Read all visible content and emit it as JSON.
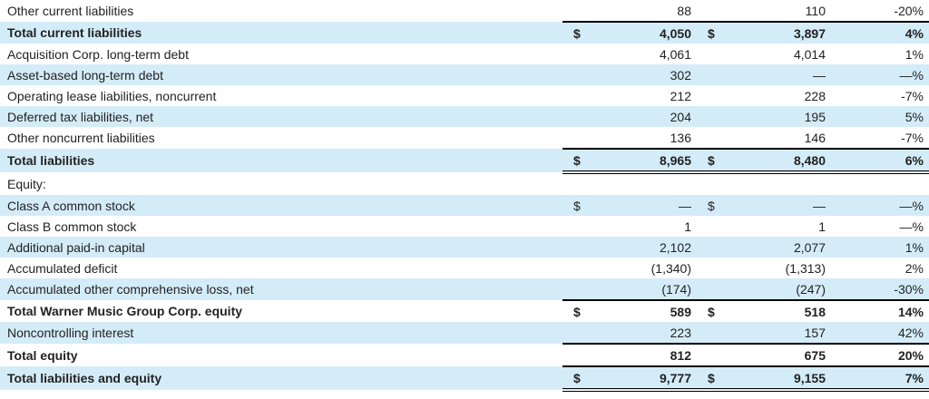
{
  "table": {
    "rows": [
      {
        "label": "Other current liabilities",
        "cells": [
          null,
          "88",
          null,
          "110",
          "-20%"
        ],
        "bold": false
      },
      {
        "label": "Total current liabilities",
        "cells": [
          "$",
          "4,050",
          "$",
          "3,897",
          "4%"
        ],
        "bold": true
      },
      {
        "label": "Acquisition Corp. long-term debt",
        "cells": [
          null,
          "4,061",
          null,
          "4,014",
          "1%"
        ],
        "bold": false
      },
      {
        "label": "Asset-based long-term debt",
        "cells": [
          null,
          "302",
          null,
          "—",
          "—%"
        ],
        "bold": false
      },
      {
        "label": "Operating lease liabilities, noncurrent",
        "cells": [
          null,
          "212",
          null,
          "228",
          "-7%"
        ],
        "bold": false
      },
      {
        "label": "Deferred tax liabilities, net",
        "cells": [
          null,
          "204",
          null,
          "195",
          "5%"
        ],
        "bold": false
      },
      {
        "label": "Other noncurrent liabilities",
        "cells": [
          null,
          "136",
          null,
          "146",
          "-7%"
        ],
        "bold": false
      },
      {
        "label": "Total liabilities",
        "cells": [
          "$",
          "8,965",
          "$",
          "8,480",
          "6%"
        ],
        "bold": true,
        "border_bottom": "double"
      },
      {
        "label": "Equity:",
        "cells": [
          null,
          null,
          null,
          null,
          null
        ],
        "bold": false
      },
      {
        "label": "Class A common stock",
        "cells": [
          "$",
          "—",
          "$",
          "—",
          "—%"
        ],
        "bold": false
      },
      {
        "label": "Class B common stock",
        "cells": [
          null,
          "1",
          null,
          "1",
          "—%"
        ],
        "bold": false
      },
      {
        "label": "Additional paid-in capital",
        "cells": [
          null,
          "2,102",
          null,
          "2,077",
          "1%"
        ],
        "bold": false
      },
      {
        "label": "Accumulated deficit",
        "cells": [
          null,
          "(1,340)",
          null,
          "(1,313)",
          "2%"
        ],
        "bold": false
      },
      {
        "label": "Accumulated other comprehensive loss, net",
        "cells": [
          null,
          "(174)",
          null,
          "(247)",
          "-30%"
        ],
        "bold": false
      },
      {
        "label": "Total Warner Music Group Corp. equity",
        "cells": [
          "$",
          "589",
          "$",
          "518",
          "14%"
        ],
        "bold": true
      },
      {
        "label": "Noncontrolling interest",
        "cells": [
          null,
          "223",
          null,
          "157",
          "42%"
        ],
        "bold": false
      },
      {
        "label": "Total equity",
        "cells": [
          null,
          "812",
          null,
          "675",
          "20%"
        ],
        "bold": true
      },
      {
        "label": "Total liabilities and equity",
        "cells": [
          "$",
          "9,777",
          "$",
          "9,155",
          "7%"
        ],
        "bold": true,
        "border_bottom": "double"
      }
    ]
  }
}
